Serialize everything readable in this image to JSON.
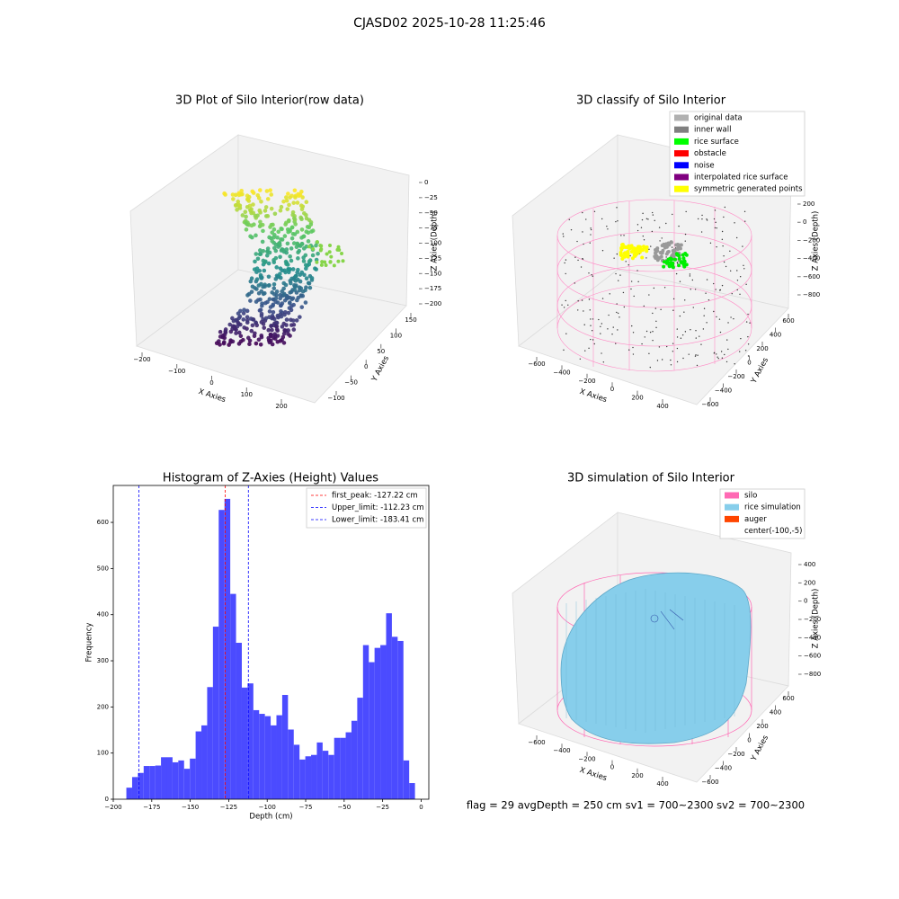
{
  "title": "CJASD02 2025-10-28 11:25:46",
  "footer": "flag = 29  avgDepth = 250 cm  sv1 = 700~2300  sv2 = 700~2300",
  "chart_data": [
    {
      "type": "scatter3d",
      "title": "3D Plot of Silo Interior(row data)",
      "xlabel": "X Axies",
      "ylabel": "Y Axies",
      "zlabel": "Z Axies (Depth)",
      "xticks": [
        {
          "value": -200,
          "label": "−200"
        },
        {
          "value": -100,
          "label": "−100"
        },
        0,
        100,
        200
      ],
      "yticks": [
        {
          "value": -100,
          "label": "−100"
        },
        {
          "value": -50,
          "label": "−50"
        },
        0,
        50,
        100,
        150
      ],
      "zticks": [
        0,
        {
          "value": -25,
          "label": "−25"
        },
        {
          "value": -50,
          "label": "−50"
        },
        {
          "value": -75,
          "label": "−75"
        },
        {
          "value": -100,
          "label": "−100"
        },
        {
          "value": -125,
          "label": "−125"
        },
        {
          "value": -150,
          "label": "−150"
        },
        {
          "value": -175,
          "label": "−175"
        },
        {
          "value": -200,
          "label": "−200"
        }
      ]
    },
    {
      "type": "scatter3d",
      "title": "3D classify of Silo Interior",
      "xlabel": "X Axies",
      "ylabel": "Y Axies",
      "zlabel": "Z Axies (Depth)",
      "legend": [
        {
          "name": "original data",
          "color": "#b0b0b0"
        },
        {
          "name": "inner wall",
          "color": "#808080"
        },
        {
          "name": "rice surface",
          "color": "#00ff00"
        },
        {
          "name": "obstacle",
          "color": "#ff0000"
        },
        {
          "name": "noise",
          "color": "#0000ff"
        },
        {
          "name": "interpolated rice surface",
          "color": "#800080"
        },
        {
          "name": "symmetric generated points",
          "color": "#ffff00"
        }
      ],
      "xticks": [
        {
          "value": -600,
          "label": "−600"
        },
        {
          "value": -400,
          "label": "−400"
        },
        {
          "value": -200,
          "label": "−200"
        },
        0,
        200,
        400
      ],
      "yticks": [
        {
          "value": -600,
          "label": "−600"
        },
        {
          "value": -400,
          "label": "−400"
        },
        {
          "value": -200,
          "label": "−200"
        },
        0,
        200,
        400,
        600
      ],
      "zticks": [
        200,
        0,
        {
          "value": -200,
          "label": "−200"
        },
        {
          "value": -400,
          "label": "−400"
        },
        {
          "value": -600,
          "label": "−600"
        },
        {
          "value": -800,
          "label": "−800"
        }
      ]
    },
    {
      "type": "histogram",
      "title": "Histogram of Z-Axies (Height) Values",
      "xlabel": "Depth (cm)",
      "ylabel": "Frequency",
      "color": "#4b4bff",
      "bins": [
        -191.5,
        -187.75,
        -184,
        -180.25,
        -176.5,
        -172.75,
        -169,
        -165.25,
        -161.5,
        -157.75,
        -154,
        -150.25,
        -146.5,
        -142.75,
        -139,
        -135.25,
        -131.5,
        -127.75,
        -124,
        -120.25,
        -116.5,
        -112.75,
        -109,
        -105.25,
        -101.5,
        -97.75,
        -94,
        -90.25,
        -86.5,
        -82.75,
        -79,
        -75.25,
        -71.5,
        -67.75,
        -64,
        -60.25,
        -56.5,
        -52.75,
        -49,
        -45.25,
        -41.5,
        -37.75,
        -34,
        -30.25,
        -26.5,
        -22.75,
        -19,
        -15.25,
        -11.5,
        -7.75,
        -4
      ],
      "values": [
        25,
        48,
        57,
        72,
        72,
        73,
        91,
        91,
        80,
        84,
        66,
        88,
        147,
        160,
        243,
        374,
        627,
        651,
        445,
        339,
        242,
        251,
        193,
        185,
        180,
        160,
        182,
        226,
        151,
        118,
        86,
        93,
        96,
        123,
        105,
        96,
        133,
        133,
        145,
        170,
        220,
        334,
        297,
        328,
        334,
        403,
        352,
        343,
        84,
        35
      ],
      "lines": [
        {
          "name": "first_peak: -127.22 cm",
          "value": -127.22,
          "color": "#ff0000"
        },
        {
          "name": "Upper_limit: -112.23 cm",
          "value": -112.23,
          "color": "#0000ff"
        },
        {
          "name": "Lower_limit: -183.41 cm",
          "value": -183.41,
          "color": "#0000ff"
        }
      ],
      "xlim": [
        -200,
        5
      ],
      "ylim": [
        0,
        680
      ],
      "xticks": [
        {
          "value": -200,
          "label": "−200"
        },
        {
          "value": -175,
          "label": "−175"
        },
        {
          "value": -150,
          "label": "−150"
        },
        {
          "value": -125,
          "label": "−125"
        },
        {
          "value": -100,
          "label": "−100"
        },
        {
          "value": -75,
          "label": "−75"
        },
        {
          "value": -50,
          "label": "−50"
        },
        {
          "value": -25,
          "label": "−25"
        },
        0
      ],
      "yticks": [
        0,
        100,
        200,
        300,
        400,
        500,
        600
      ],
      "legend": "upper right"
    },
    {
      "type": "surface3d",
      "title": "3D simulation of Silo Interior",
      "xlabel": "X Axies",
      "ylabel": "Y Axies",
      "zlabel": "Z Axies (Depth)",
      "legend": [
        {
          "name": "silo",
          "color": "#ff69b4"
        },
        {
          "name": "rice simulation",
          "color": "#87ceeb"
        },
        {
          "name": "auger",
          "color": "#ff4500"
        },
        {
          "name": "center(-100,-5)"
        }
      ],
      "xticks": [
        {
          "value": -600,
          "label": "−600"
        },
        {
          "value": -400,
          "label": "−400"
        },
        {
          "value": -200,
          "label": "−200"
        },
        0,
        200,
        400
      ],
      "yticks": [
        {
          "value": -600,
          "label": "−600"
        },
        {
          "value": -400,
          "label": "−400"
        },
        {
          "value": -200,
          "label": "−200"
        },
        0,
        200,
        400,
        600
      ],
      "zticks": [
        400,
        200,
        0,
        {
          "value": -200,
          "label": "−200"
        },
        {
          "value": -400,
          "label": "−400"
        },
        {
          "value": -600,
          "label": "−600"
        },
        {
          "value": -800,
          "label": "−800"
        }
      ]
    }
  ]
}
